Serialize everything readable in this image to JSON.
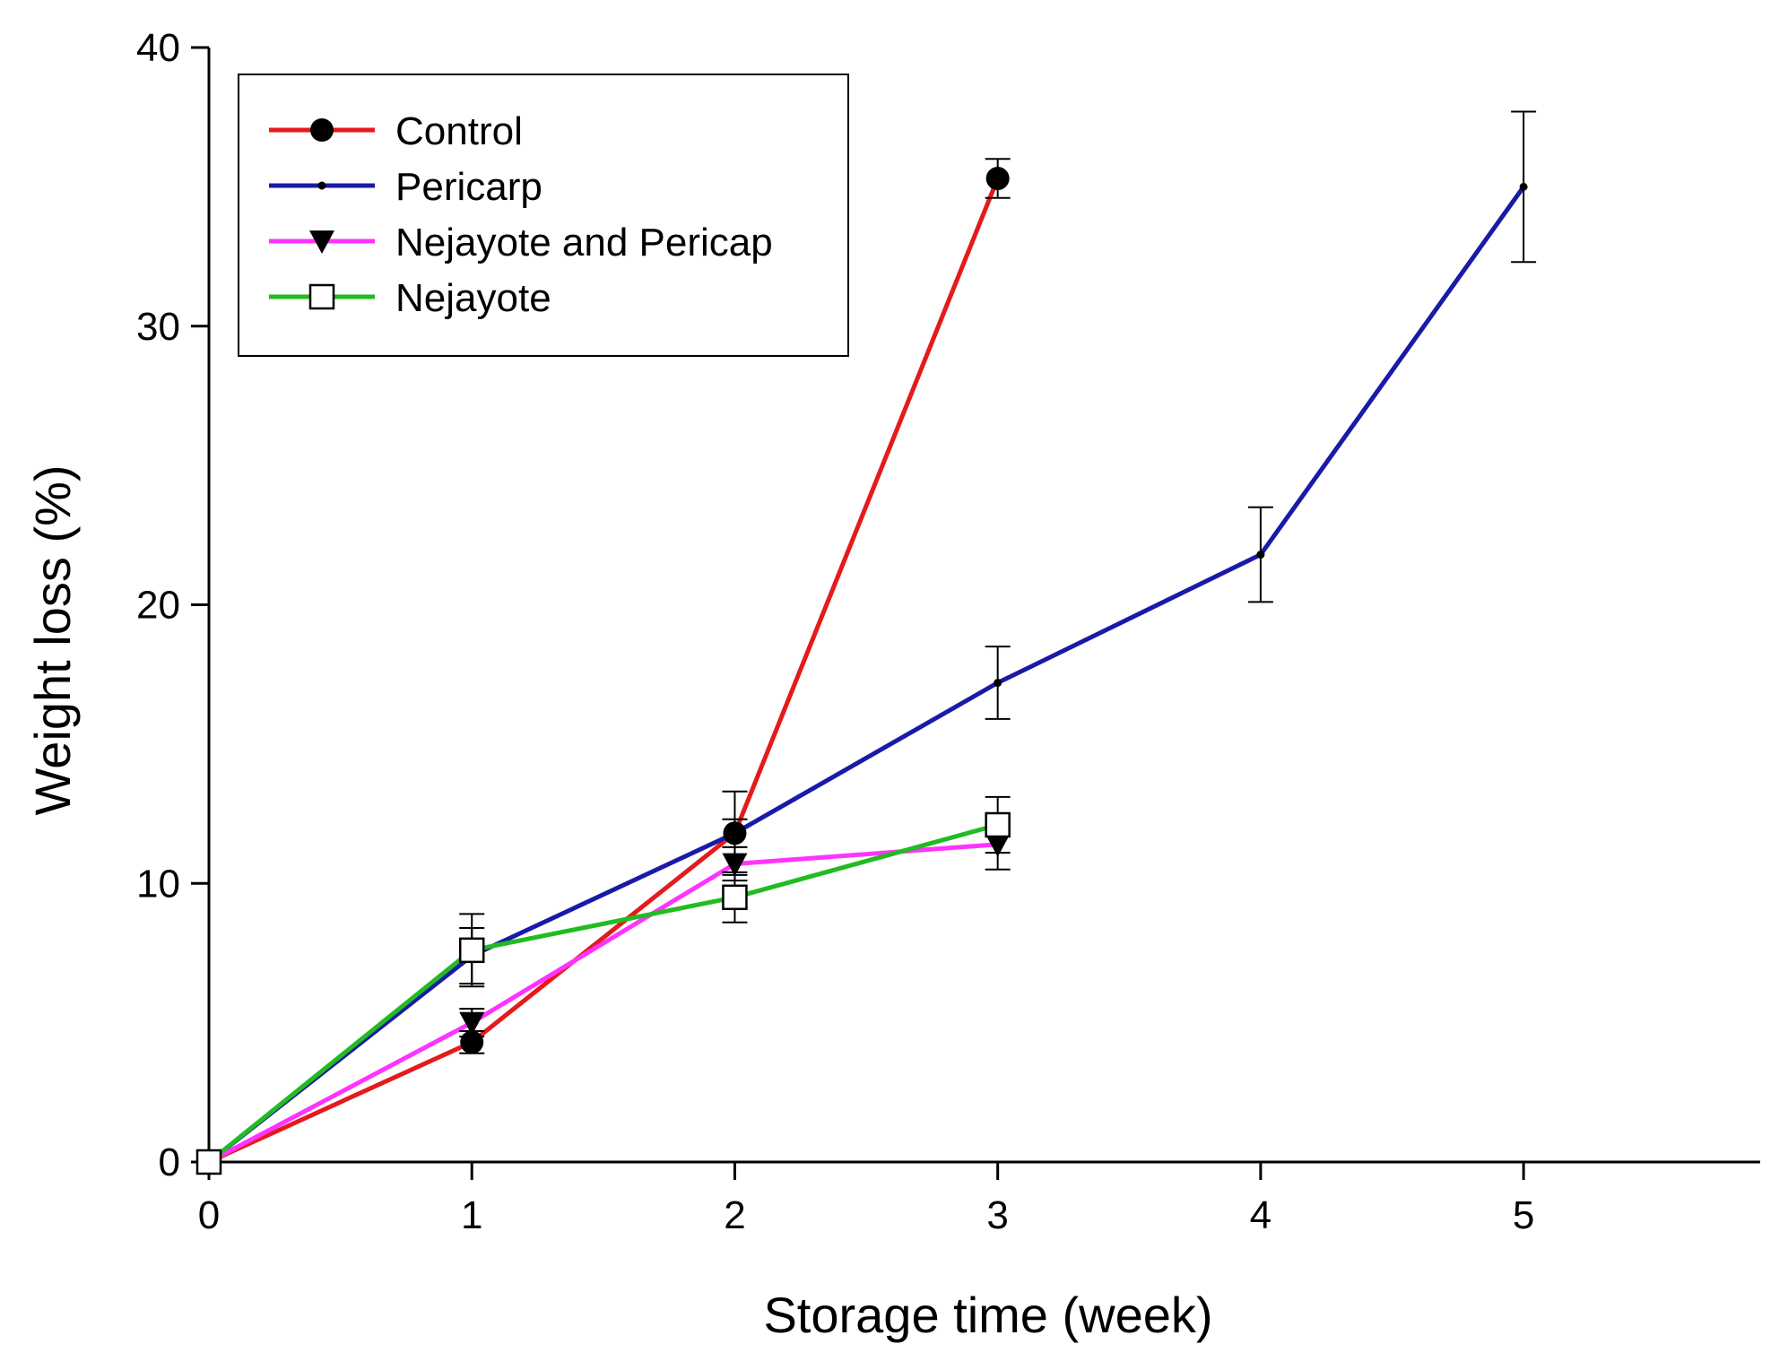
{
  "chart_data": {
    "type": "line",
    "title": "",
    "xlabel": "Storage time (week)",
    "ylabel": "Weight loss (%)",
    "xlim": [
      0,
      5.9
    ],
    "ylim": [
      0,
      40
    ],
    "xticks": [
      0,
      1,
      2,
      3,
      4,
      5
    ],
    "yticks": [
      0,
      10,
      20,
      30,
      40
    ],
    "xtick_labels": [
      "0",
      "1",
      "2",
      "3",
      "4",
      "5"
    ],
    "ytick_labels": [
      "0",
      "10",
      "20",
      "30",
      "40"
    ],
    "grid": false,
    "legend_position": "top-left",
    "series": [
      {
        "name": "Control",
        "color": "#e41a1c",
        "marker": "filled-circle",
        "x": [
          0,
          1,
          2,
          3
        ],
        "values": [
          0,
          4.3,
          11.8,
          35.3
        ],
        "errors": [
          0,
          0.4,
          0.5,
          0.7
        ]
      },
      {
        "name": "Pericarp",
        "color": "#1a1aa8",
        "marker": "small-dot",
        "x": [
          0,
          1,
          2,
          3,
          4,
          5
        ],
        "values": [
          0,
          7.4,
          11.8,
          17.2,
          21.8,
          35.0
        ],
        "errors": [
          0,
          1.0,
          1.5,
          1.3,
          1.7,
          2.7
        ]
      },
      {
        "name": "Nejayote and Pericap",
        "color": "#ff33ff",
        "marker": "filled-triangle-down",
        "x": [
          0,
          1,
          2,
          3
        ],
        "values": [
          0,
          5.0,
          10.7,
          11.4
        ],
        "errors": [
          0,
          0.5,
          0.6,
          0.9
        ]
      },
      {
        "name": "Nejayote",
        "color": "#22bb22",
        "marker": "open-square",
        "x": [
          0,
          1,
          2,
          3
        ],
        "values": [
          0,
          7.6,
          9.5,
          12.1
        ],
        "errors": [
          0,
          1.3,
          0.9,
          1.0
        ]
      }
    ]
  }
}
